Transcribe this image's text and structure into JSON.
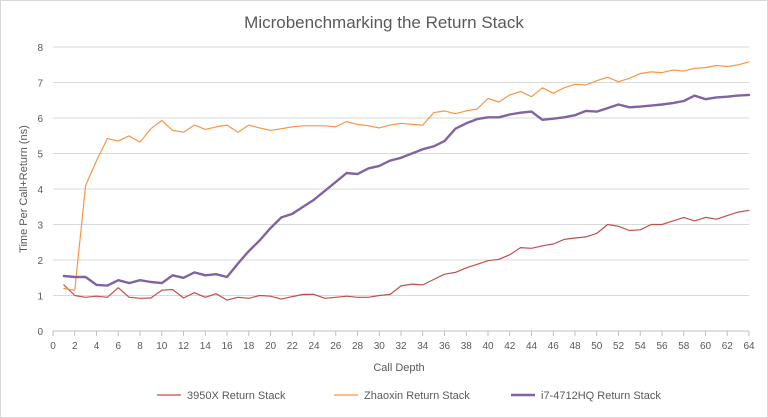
{
  "chart_data": {
    "type": "line",
    "title": "Microbenchmarking the Return Stack",
    "xlabel": "Call Depth",
    "ylabel": "Time Per Call+Return (ns)",
    "xlim": [
      0,
      64
    ],
    "ylim": [
      0,
      8
    ],
    "x_ticks": [
      0,
      2,
      4,
      6,
      8,
      10,
      12,
      14,
      16,
      18,
      20,
      22,
      24,
      26,
      28,
      30,
      32,
      34,
      36,
      38,
      40,
      42,
      44,
      46,
      48,
      50,
      52,
      54,
      56,
      58,
      60,
      62,
      64
    ],
    "y_ticks": [
      0,
      1,
      2,
      3,
      4,
      5,
      6,
      7,
      8
    ],
    "grid": "horizontal",
    "legend_position": "bottom",
    "x": [
      1,
      2,
      3,
      4,
      5,
      6,
      7,
      8,
      9,
      10,
      11,
      12,
      13,
      14,
      15,
      16,
      17,
      18,
      19,
      20,
      21,
      22,
      23,
      24,
      25,
      26,
      27,
      28,
      29,
      30,
      31,
      32,
      33,
      34,
      35,
      36,
      37,
      38,
      39,
      40,
      41,
      42,
      43,
      44,
      45,
      46,
      47,
      48,
      49,
      50,
      51,
      52,
      53,
      54,
      55,
      56,
      57,
      58,
      59,
      60,
      61,
      62,
      63,
      64
    ],
    "series": [
      {
        "name": "3950X Return Stack",
        "color": "#c0504d",
        "width": 1.2,
        "values": [
          1.3,
          1.0,
          0.95,
          0.98,
          0.95,
          1.22,
          0.95,
          0.92,
          0.93,
          1.15,
          1.17,
          0.93,
          1.08,
          0.95,
          1.05,
          0.87,
          0.95,
          0.92,
          1.0,
          0.98,
          0.9,
          0.97,
          1.03,
          1.03,
          0.92,
          0.95,
          0.98,
          0.95,
          0.95,
          1.0,
          1.03,
          1.27,
          1.32,
          1.3,
          1.45,
          1.6,
          1.65,
          1.78,
          1.88,
          1.98,
          2.02,
          2.15,
          2.35,
          2.33,
          2.4,
          2.45,
          2.58,
          2.62,
          2.65,
          2.75,
          3.0,
          2.95,
          2.83,
          2.85,
          3.0,
          3.0,
          3.1,
          3.2,
          3.1,
          3.2,
          3.15,
          3.25,
          3.35,
          3.4
        ]
      },
      {
        "name": "Zhaoxin Return Stack",
        "color": "#f79646",
        "width": 1.2,
        "values": [
          1.2,
          1.15,
          4.1,
          4.8,
          5.42,
          5.35,
          5.5,
          5.32,
          5.7,
          5.93,
          5.65,
          5.6,
          5.8,
          5.68,
          5.75,
          5.8,
          5.6,
          5.8,
          5.72,
          5.65,
          5.7,
          5.75,
          5.78,
          5.78,
          5.78,
          5.75,
          5.9,
          5.82,
          5.78,
          5.72,
          5.8,
          5.85,
          5.82,
          5.8,
          6.15,
          6.2,
          6.12,
          6.2,
          6.25,
          6.55,
          6.45,
          6.65,
          6.75,
          6.6,
          6.85,
          6.7,
          6.85,
          6.95,
          6.93,
          7.05,
          7.15,
          7.02,
          7.12,
          7.25,
          7.3,
          7.28,
          7.35,
          7.32,
          7.4,
          7.42,
          7.48,
          7.45,
          7.5,
          7.58
        ]
      },
      {
        "name": "i7-4712HQ Return Stack",
        "color": "#8064a2",
        "width": 2.4,
        "values": [
          1.55,
          1.52,
          1.52,
          1.3,
          1.28,
          1.43,
          1.35,
          1.43,
          1.38,
          1.35,
          1.57,
          1.5,
          1.65,
          1.57,
          1.6,
          1.52,
          1.9,
          2.25,
          2.55,
          2.9,
          3.2,
          3.3,
          3.5,
          3.7,
          3.95,
          4.2,
          4.45,
          4.42,
          4.58,
          4.65,
          4.8,
          4.88,
          5.0,
          5.12,
          5.2,
          5.35,
          5.7,
          5.85,
          5.97,
          6.02,
          6.02,
          6.1,
          6.15,
          6.18,
          5.95,
          5.98,
          6.02,
          6.08,
          6.2,
          6.18,
          6.28,
          6.38,
          6.3,
          6.32,
          6.35,
          6.38,
          6.42,
          6.48,
          6.63,
          6.53,
          6.58,
          6.6,
          6.63,
          6.65
        ]
      }
    ]
  }
}
